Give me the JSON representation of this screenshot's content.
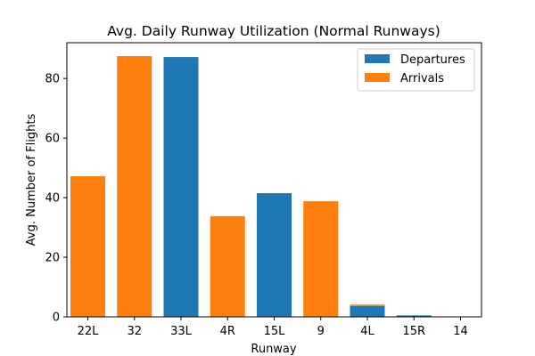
{
  "chart_data": {
    "type": "bar",
    "title": "Avg. Daily Runway Utilization (Normal Runways)",
    "xlabel": "Runway",
    "ylabel": "Avg. Number of Flights",
    "categories": [
      "22L",
      "32",
      "33L",
      "4R",
      "15L",
      "9",
      "4L",
      "15R",
      "14"
    ],
    "series": [
      {
        "name": "Departures",
        "color": "#1f77b4",
        "values": [
          0,
          0,
          87.2,
          0,
          41.5,
          0,
          3.6,
          0.5,
          0.1
        ]
      },
      {
        "name": "Arrivals",
        "color": "#ff7f0e",
        "values": [
          47.2,
          87.5,
          0,
          33.8,
          0,
          38.8,
          0.5,
          0,
          0
        ]
      }
    ],
    "ylim": [
      0,
      92
    ],
    "yticks": [
      0,
      20,
      40,
      60,
      80
    ],
    "grid": false,
    "legend_position": "top-right"
  }
}
